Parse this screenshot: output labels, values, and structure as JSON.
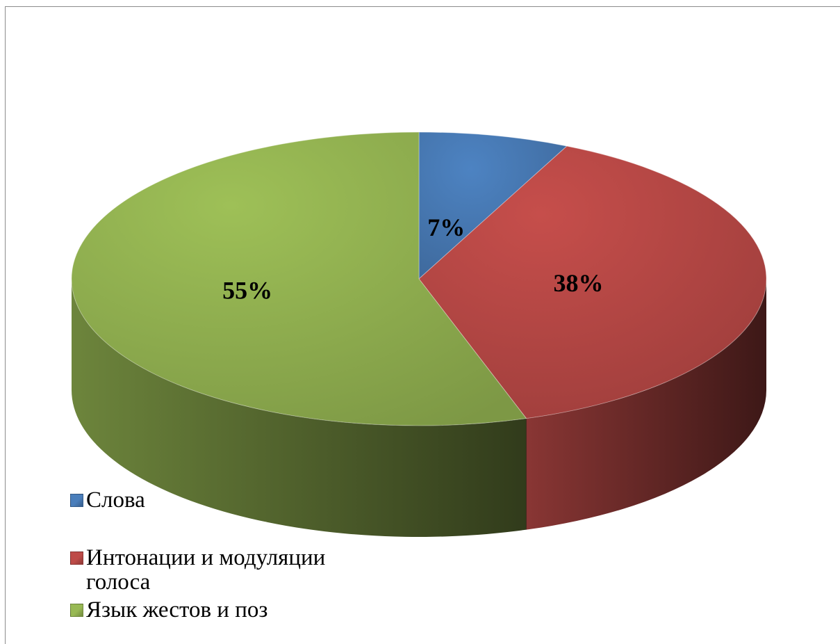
{
  "chart_data": {
    "type": "pie",
    "title": "",
    "style": "3d",
    "data_labels": "percent",
    "legend_position": "bottom-left",
    "slices": [
      {
        "name": "Слова",
        "value": 7,
        "label": "7%",
        "color": "#4a7ebb"
      },
      {
        "name": "Интонации и модуляции голоса",
        "value": 38,
        "label": "38%",
        "color": "#be4b48"
      },
      {
        "name": "Язык жестов и поз",
        "value": 55,
        "label": "55%",
        "color": "#98b954"
      }
    ]
  },
  "legend": {
    "items": [
      {
        "label": "Слова",
        "color": "#4a7ebb"
      },
      {
        "label": "Интонации и модуляции голоса",
        "color": "#be4b48"
      },
      {
        "label": "Язык жестов и поз",
        "color": "#98b954"
      }
    ]
  }
}
